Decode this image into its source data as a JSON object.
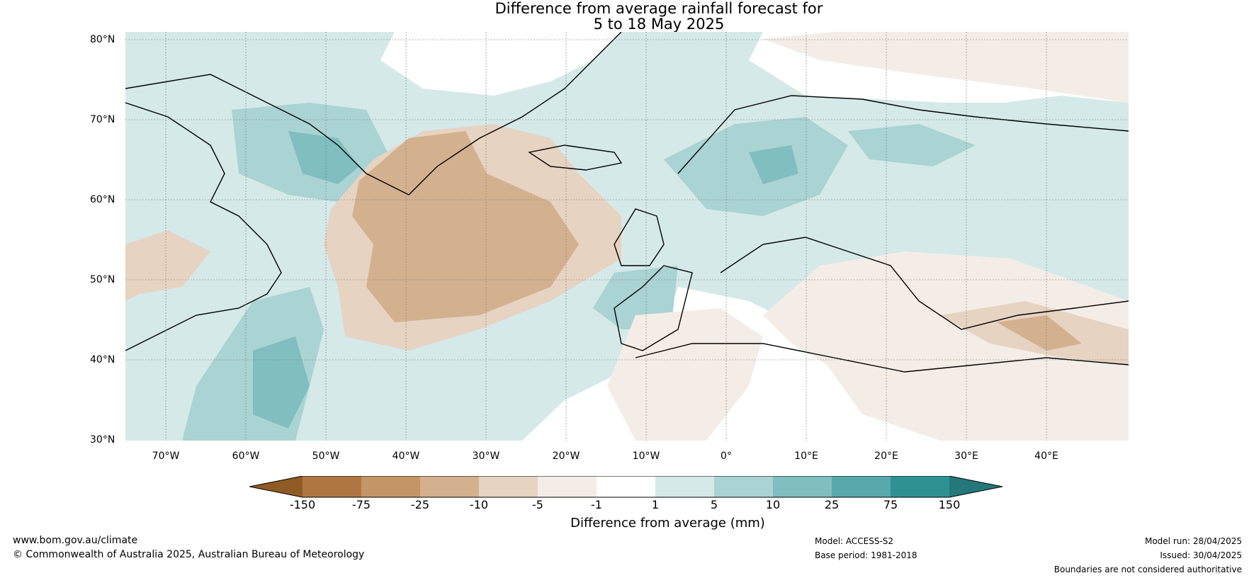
{
  "header": {
    "title_line1": "Difference from average rainfall forecast for",
    "title_line2": "5 to 18 May 2025"
  },
  "map": {
    "lat_labels": [
      "80°N",
      "70°N",
      "60°N",
      "50°N",
      "40°N",
      "30°N"
    ],
    "lon_labels": [
      "70°W",
      "60°W",
      "50°W",
      "40°W",
      "30°W",
      "20°W",
      "10°W",
      "0°",
      "10°E",
      "20°E",
      "30°E",
      "40°E"
    ],
    "extent": {
      "lon": [
        -75,
        50
      ],
      "lat": [
        30,
        81
      ]
    }
  },
  "legend": {
    "title": "Difference from average (mm)",
    "ticks": [
      "-150",
      "-75",
      "-25",
      "-10",
      "-5",
      "-1",
      "1",
      "5",
      "10",
      "25",
      "75",
      "150"
    ],
    "colors": {
      "dry_extreme": "#8f5a24",
      "dry_75": "#b07641",
      "dry_25": "#c39567",
      "dry_10": "#d3b18f",
      "dry_5": "#e7d3c2",
      "dry_1": "#f4ede7",
      "neutral": "#ffffff",
      "wet_1": "#d5e9e9",
      "wet_5": "#aad3d3",
      "wet_10": "#80bebf",
      "wet_25": "#58a9ab",
      "wet_75": "#2e9293",
      "wet_extreme": "#247879"
    }
  },
  "footer": {
    "website": "www.bom.gov.au/climate",
    "copyright": "© Commonwealth of Australia 2025, Australian Bureau of Meteorology",
    "model": "Model: ACCESS-S2",
    "base_period": "Base period: 1981-2018",
    "model_run": "Model run: 28/04/2025",
    "issued": "Issued: 30/04/2025",
    "disclaimer": "Boundaries are not considered authoritative"
  }
}
